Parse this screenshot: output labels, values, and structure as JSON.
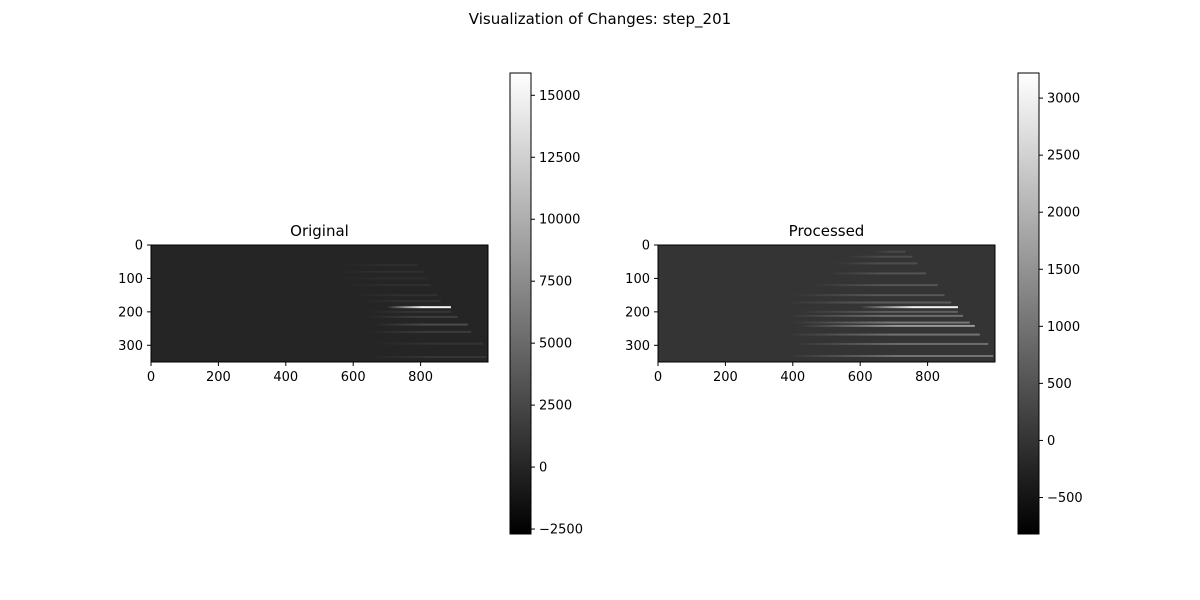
{
  "figure": {
    "title": "Visualization of Changes: step_201"
  },
  "chart_data": [
    {
      "type": "heatmap",
      "title": "Original",
      "xticks": [
        0,
        200,
        400,
        600,
        800
      ],
      "yticks": [
        0,
        100,
        200,
        300
      ],
      "xlim": [
        0,
        1000
      ],
      "ylim": [
        0,
        350
      ],
      "background_value": 0,
      "colorbar": {
        "range": [
          -2700,
          15900
        ],
        "ticks": [
          -2500,
          0,
          2500,
          5000,
          7500,
          10000,
          12500,
          15000
        ],
        "tick_labels": [
          "−2500",
          "0",
          "2500",
          "5000",
          "7500",
          "10000",
          "12500",
          "15000"
        ]
      },
      "streaks": [
        {
          "row": 60,
          "x_start": 560,
          "x_end": 790,
          "value": 600
        },
        {
          "row": 80,
          "x_start": 540,
          "x_end": 810,
          "value": 700
        },
        {
          "row": 100,
          "x_start": 560,
          "x_end": 820,
          "value": 600
        },
        {
          "row": 120,
          "x_start": 580,
          "x_end": 830,
          "value": 700
        },
        {
          "row": 150,
          "x_start": 600,
          "x_end": 850,
          "value": 800
        },
        {
          "row": 168,
          "x_start": 620,
          "x_end": 860,
          "value": 900
        },
        {
          "row": 186,
          "x_start": 700,
          "x_end": 890,
          "value": 15000
        },
        {
          "row": 200,
          "x_start": 640,
          "x_end": 890,
          "value": 1200
        },
        {
          "row": 215,
          "x_start": 640,
          "x_end": 910,
          "value": 1800
        },
        {
          "row": 238,
          "x_start": 660,
          "x_end": 940,
          "value": 2800
        },
        {
          "row": 260,
          "x_start": 640,
          "x_end": 950,
          "value": 1500
        },
        {
          "row": 295,
          "x_start": 660,
          "x_end": 985,
          "value": 1000
        },
        {
          "row": 335,
          "x_start": 640,
          "x_end": 995,
          "value": 1200
        }
      ]
    },
    {
      "type": "heatmap",
      "title": "Processed",
      "xticks": [
        0,
        200,
        400,
        600,
        800
      ],
      "yticks": [
        0,
        100,
        200,
        300
      ],
      "xlim": [
        0,
        1000
      ],
      "ylim": [
        0,
        350
      ],
      "background_value": 0,
      "colorbar": {
        "range": [
          -820,
          3220
        ],
        "ticks": [
          -500,
          0,
          500,
          1000,
          1500,
          2000,
          2500,
          3000
        ],
        "tick_labels": [
          "−500",
          "0",
          "500",
          "1000",
          "1500",
          "2000",
          "2500",
          "3000"
        ]
      },
      "streaks": [
        {
          "row": 20,
          "x_start": 640,
          "x_end": 735,
          "value": 350
        },
        {
          "row": 35,
          "x_start": 560,
          "x_end": 755,
          "value": 380
        },
        {
          "row": 55,
          "x_start": 520,
          "x_end": 770,
          "value": 420
        },
        {
          "row": 85,
          "x_start": 500,
          "x_end": 795,
          "value": 480
        },
        {
          "row": 120,
          "x_start": 460,
          "x_end": 830,
          "value": 520
        },
        {
          "row": 150,
          "x_start": 400,
          "x_end": 850,
          "value": 560
        },
        {
          "row": 172,
          "x_start": 380,
          "x_end": 870,
          "value": 620
        },
        {
          "row": 186,
          "x_start": 600,
          "x_end": 890,
          "value": 3000
        },
        {
          "row": 200,
          "x_start": 420,
          "x_end": 890,
          "value": 700
        },
        {
          "row": 212,
          "x_start": 380,
          "x_end": 905,
          "value": 900
        },
        {
          "row": 232,
          "x_start": 400,
          "x_end": 925,
          "value": 1100
        },
        {
          "row": 242,
          "x_start": 420,
          "x_end": 940,
          "value": 1600
        },
        {
          "row": 268,
          "x_start": 380,
          "x_end": 955,
          "value": 1000
        },
        {
          "row": 296,
          "x_start": 400,
          "x_end": 980,
          "value": 900
        },
        {
          "row": 332,
          "x_start": 380,
          "x_end": 995,
          "value": 1000
        }
      ]
    }
  ]
}
